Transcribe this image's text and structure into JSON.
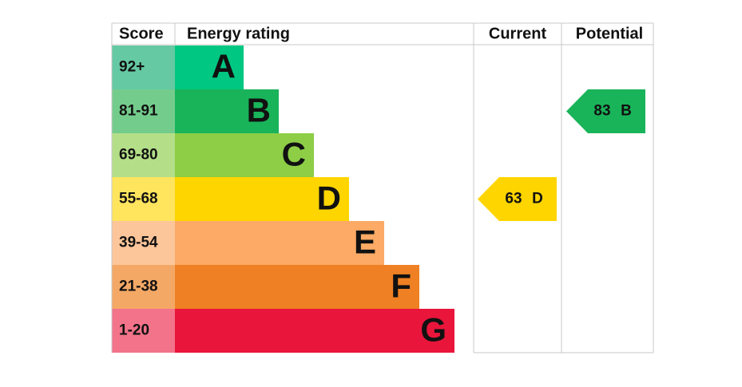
{
  "headers": {
    "score": "Score",
    "rating": "Energy rating",
    "current": "Current",
    "potential": "Potential"
  },
  "bands": [
    {
      "score": "92+",
      "letter": "A",
      "color": "#00c781",
      "score_color": "#65c9a4"
    },
    {
      "score": "81-91",
      "letter": "B",
      "color": "#19b459",
      "score_color": "#74cc8c"
    },
    {
      "score": "69-80",
      "letter": "C",
      "color": "#8dce46",
      "score_color": "#b4df88"
    },
    {
      "score": "55-68",
      "letter": "D",
      "color": "#ffd500",
      "score_color": "#ffe45e"
    },
    {
      "score": "39-54",
      "letter": "E",
      "color": "#fcaa65",
      "score_color": "#fcc59a"
    },
    {
      "score": "21-38",
      "letter": "F",
      "color": "#ef8023",
      "score_color": "#f4a866"
    },
    {
      "score": "1-20",
      "letter": "G",
      "color": "#e9153b",
      "score_color": "#f2738a"
    }
  ],
  "current": {
    "value": 63,
    "letter": "D"
  },
  "potential": {
    "value": 83,
    "letter": "B"
  }
}
